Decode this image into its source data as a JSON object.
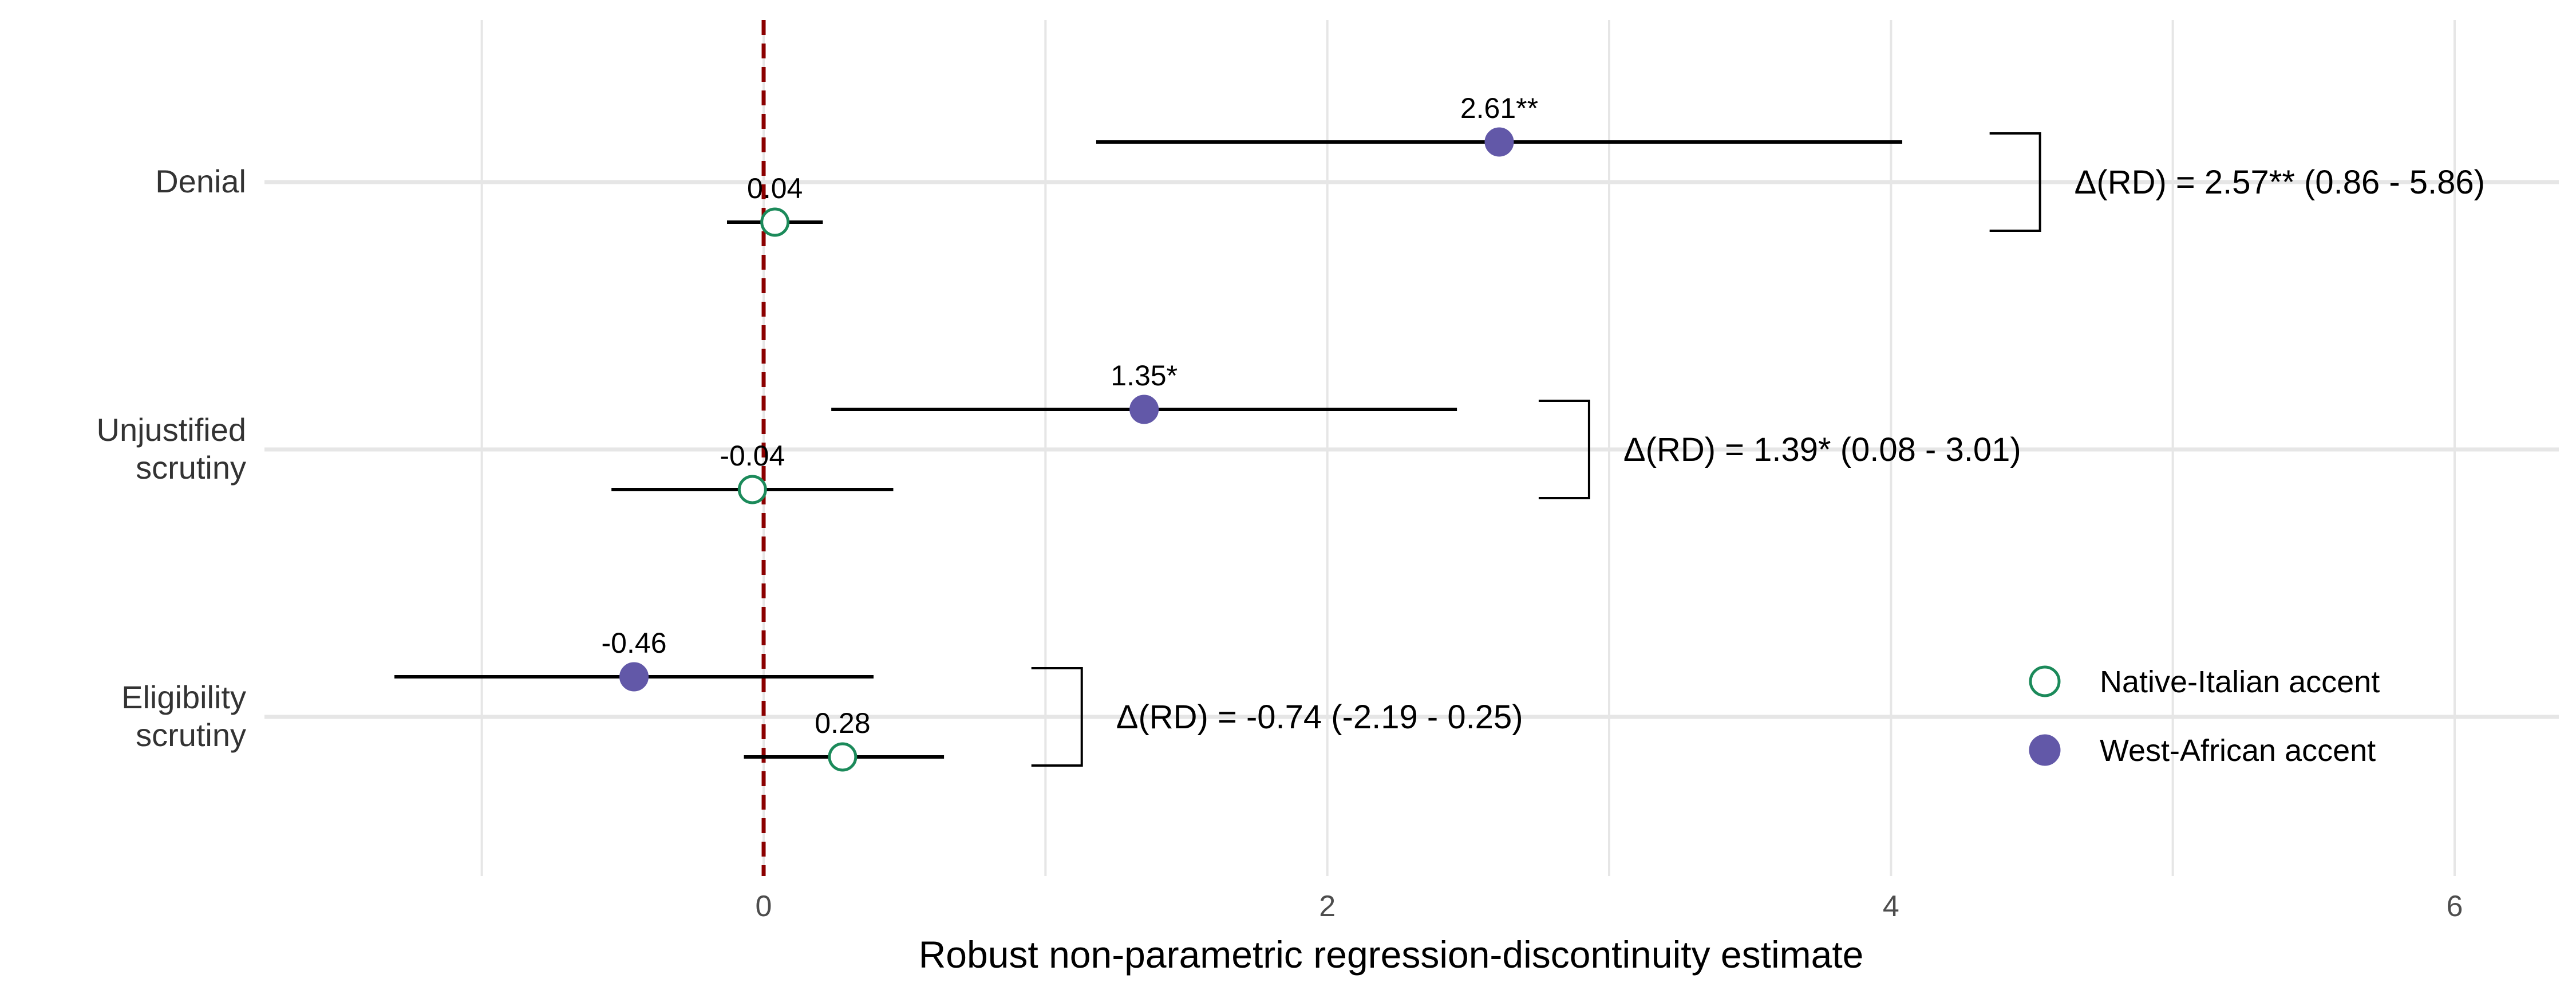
{
  "chart_data": {
    "type": "scatter",
    "subtype": "forest-plot-point-estimates-with-confidence-intervals",
    "title": "",
    "xlabel": "Robust non-parametric regression-discontinuity estimate",
    "ylabel": "",
    "xlim": [
      -1.7,
      6.4
    ],
    "x_ticks": [
      0,
      2,
      4,
      6
    ],
    "x_tick_labels": [
      "0",
      "2",
      "4",
      "6"
    ],
    "grid": true,
    "reference_line": {
      "x": 0,
      "style": "dashed",
      "color": "#8b0000"
    },
    "categories": [
      "Denial",
      "Unjustified scrutiny",
      "Eligibility scrutiny"
    ],
    "category_labels": [
      [
        "Denial"
      ],
      [
        "Unjustified",
        "scrutiny"
      ],
      [
        "Eligibility",
        "scrutiny"
      ]
    ],
    "legend_position": "bottom-right",
    "colors": {
      "west_african": "#6258a8",
      "native_italian": "#1b8a5a",
      "reference": "#8b0000",
      "grid": "#e6e6e6",
      "text": "#333333"
    },
    "series": [
      {
        "name": "Native-Italian accent",
        "marker": "hollow-circle",
        "estimates": [
          0.04,
          -0.04,
          0.28
        ],
        "ci_low": [
          -0.13,
          -0.54,
          -0.07
        ],
        "ci_high": [
          0.21,
          0.46,
          0.64
        ],
        "point_labels": [
          "0.04",
          "-0.04",
          "0.28"
        ]
      },
      {
        "name": "West-African accent",
        "marker": "filled-circle",
        "estimates": [
          2.61,
          1.35,
          -0.46
        ],
        "ci_low": [
          1.18,
          0.24,
          -1.31
        ],
        "ci_high": [
          4.04,
          2.46,
          0.39
        ],
        "point_labels": [
          "2.61**",
          "1.35*",
          "-0.46"
        ]
      }
    ],
    "difference_annotations": [
      {
        "category": "Denial",
        "text": "Δ(RD) = 2.57** (0.86 - 5.86)",
        "bracket_x": 4.35
      },
      {
        "category": "Unjustified scrutiny",
        "text": "Δ(RD) = 1.39* (0.08 - 3.01)",
        "bracket_x": 2.75
      },
      {
        "category": "Eligibility scrutiny",
        "text": "Δ(RD) = -0.74 (-2.19 - 0.25)",
        "bracket_x": 0.95
      }
    ]
  }
}
